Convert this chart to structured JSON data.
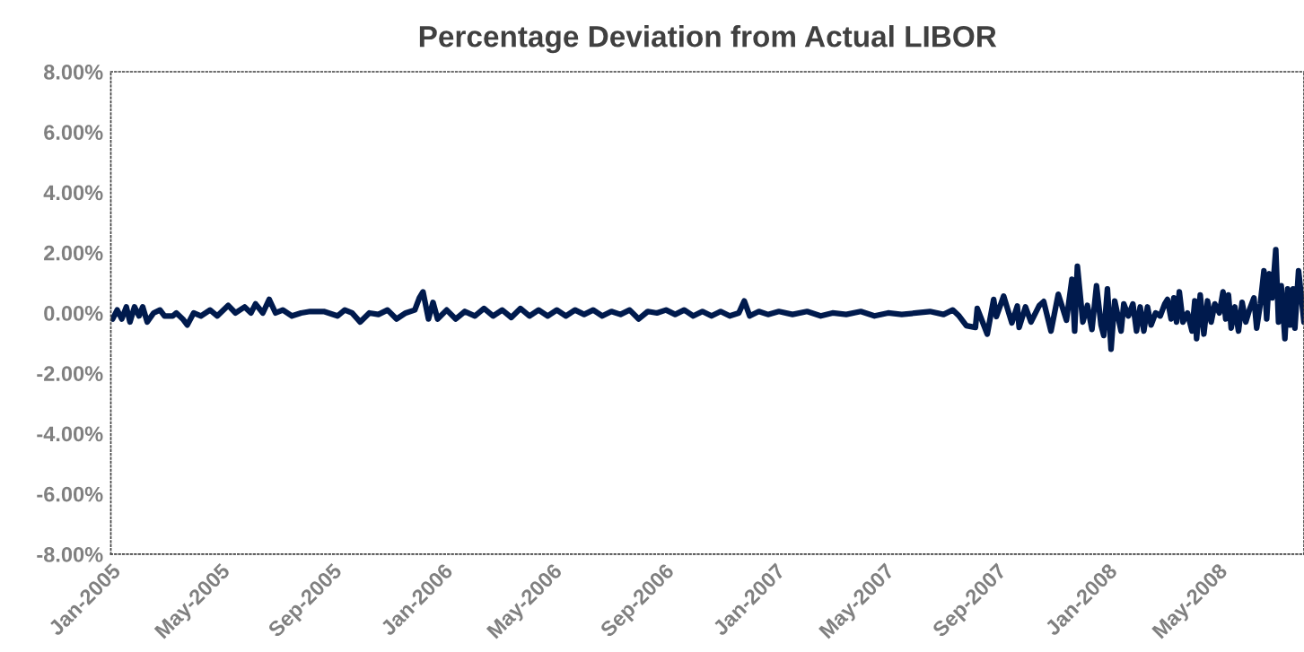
{
  "chart_data": {
    "type": "line",
    "title": "Percentage Deviation from Actual LIBOR",
    "x": [
      "2005-01-03",
      "2005-01-08",
      "2005-01-13",
      "2005-01-18",
      "2005-01-22",
      "2005-01-27",
      "2005-02-01",
      "2005-02-05",
      "2005-02-10",
      "2005-02-17",
      "2005-02-24",
      "2005-03-01",
      "2005-03-10",
      "2005-03-14",
      "2005-03-21",
      "2005-03-26",
      "2005-04-02",
      "2005-04-10",
      "2005-04-20",
      "2005-04-28",
      "2005-05-10",
      "2005-05-18",
      "2005-05-28",
      "2005-06-04",
      "2005-06-09",
      "2005-06-17",
      "2005-06-24",
      "2005-07-01",
      "2005-07-09",
      "2005-07-19",
      "2005-07-29",
      "2005-08-08",
      "2005-08-23",
      "2005-09-07",
      "2005-09-15",
      "2005-09-23",
      "2005-10-02",
      "2005-10-12",
      "2005-10-22",
      "2005-11-01",
      "2005-11-11",
      "2005-11-21",
      "2005-12-01",
      "2005-12-06",
      "2005-12-10",
      "2005-12-16",
      "2005-12-21",
      "2005-12-26",
      "2006-01-05",
      "2006-01-15",
      "2006-01-25",
      "2006-02-05",
      "2006-02-15",
      "2006-02-25",
      "2006-03-07",
      "2006-03-17",
      "2006-03-27",
      "2006-04-06",
      "2006-04-16",
      "2006-04-26",
      "2006-05-06",
      "2006-05-16",
      "2006-05-26",
      "2006-06-05",
      "2006-06-15",
      "2006-06-25",
      "2006-07-05",
      "2006-07-15",
      "2006-07-25",
      "2006-08-04",
      "2006-08-14",
      "2006-08-24",
      "2006-09-03",
      "2006-09-13",
      "2006-09-23",
      "2006-10-03",
      "2006-10-13",
      "2006-10-23",
      "2006-11-02",
      "2006-11-12",
      "2006-11-22",
      "2006-11-28",
      "2006-12-04",
      "2006-12-14",
      "2006-12-24",
      "2007-01-05",
      "2007-01-20",
      "2007-02-05",
      "2007-02-20",
      "2007-03-05",
      "2007-03-20",
      "2007-04-05",
      "2007-04-20",
      "2007-05-05",
      "2007-05-20",
      "2007-06-05",
      "2007-06-20",
      "2007-07-05",
      "2007-07-15",
      "2007-07-22",
      "2007-07-30",
      "2007-08-09",
      "2007-08-11",
      "2007-08-22",
      "2007-08-29",
      "2007-09-01",
      "2007-09-09",
      "2007-09-18",
      "2007-09-24",
      "2007-09-26",
      "2007-10-03",
      "2007-10-09",
      "2007-10-18",
      "2007-10-23",
      "2007-10-31",
      "2007-11-08",
      "2007-11-17",
      "2007-11-23",
      "2007-11-26",
      "2007-11-29",
      "2007-12-05",
      "2007-12-10",
      "2007-12-15",
      "2007-12-20",
      "2007-12-25",
      "2007-12-28",
      "2008-01-01",
      "2008-01-05",
      "2008-01-09",
      "2008-01-16",
      "2008-01-19",
      "2008-01-24",
      "2008-01-29",
      "2008-02-02",
      "2008-02-06",
      "2008-02-10",
      "2008-02-14",
      "2008-02-18",
      "2008-02-23",
      "2008-02-28",
      "2008-03-04",
      "2008-03-07",
      "2008-03-11",
      "2008-03-14",
      "2008-03-17",
      "2008-03-20",
      "2008-03-24",
      "2008-03-29",
      "2008-04-03",
      "2008-04-06",
      "2008-04-08",
      "2008-04-12",
      "2008-04-16",
      "2008-04-20",
      "2008-04-24",
      "2008-04-28",
      "2008-05-03",
      "2008-05-07",
      "2008-05-10",
      "2008-05-13",
      "2008-05-16",
      "2008-05-20",
      "2008-05-24",
      "2008-05-28",
      "2008-06-01",
      "2008-06-05",
      "2008-06-10",
      "2008-06-13",
      "2008-06-17",
      "2008-06-21",
      "2008-06-24",
      "2008-06-27",
      "2008-06-30",
      "2008-07-04",
      "2008-07-07",
      "2008-07-10",
      "2008-07-14",
      "2008-07-17",
      "2008-07-20",
      "2008-07-23",
      "2008-07-25",
      "2008-07-29",
      "2008-08-04"
    ],
    "series": [
      {
        "color": "#001a4d",
        "values": [
          -0.2,
          0.1,
          -0.2,
          0.2,
          -0.3,
          0.2,
          -0.1,
          0.2,
          -0.3,
          0.0,
          0.1,
          -0.1,
          -0.1,
          0.0,
          -0.2,
          -0.4,
          0.0,
          -0.1,
          0.1,
          -0.1,
          0.25,
          0.0,
          0.2,
          0.0,
          0.3,
          0.0,
          0.45,
          0.0,
          0.1,
          -0.1,
          0.0,
          0.05,
          0.05,
          -0.1,
          0.1,
          0.0,
          -0.3,
          0.0,
          -0.05,
          0.1,
          -0.2,
          0.0,
          0.1,
          0.5,
          0.7,
          -0.2,
          0.35,
          -0.2,
          0.1,
          -0.2,
          0.05,
          -0.1,
          0.15,
          -0.1,
          0.1,
          -0.15,
          0.15,
          -0.1,
          0.1,
          -0.1,
          0.1,
          -0.1,
          0.1,
          -0.05,
          0.1,
          -0.1,
          0.05,
          -0.05,
          0.1,
          -0.2,
          0.05,
          0.0,
          0.1,
          -0.05,
          0.1,
          -0.1,
          0.05,
          -0.1,
          0.05,
          -0.1,
          0.0,
          0.4,
          -0.1,
          0.05,
          -0.05,
          0.05,
          -0.05,
          0.05,
          -0.1,
          0.0,
          -0.05,
          0.05,
          -0.1,
          0.0,
          -0.05,
          0.0,
          0.05,
          -0.05,
          0.1,
          -0.1,
          -0.42,
          -0.48,
          0.15,
          -0.7,
          0.45,
          -0.12,
          0.56,
          -0.33,
          0.23,
          -0.48,
          0.2,
          -0.3,
          0.24,
          0.38,
          -0.6,
          0.62,
          -0.24,
          1.12,
          -0.6,
          1.55,
          -0.3,
          0.25,
          -0.55,
          0.9,
          -0.4,
          -0.75,
          0.8,
          -1.2,
          0.4,
          -0.6,
          0.3,
          -0.1,
          0.3,
          -0.6,
          0.2,
          -0.6,
          0.2,
          -0.4,
          0.0,
          -0.1,
          0.3,
          0.45,
          -0.2,
          0.5,
          -0.3,
          0.7,
          -0.3,
          0.0,
          -0.6,
          0.4,
          -0.85,
          0.6,
          -0.7,
          0.4,
          -0.3,
          0.3,
          0.0,
          0.7,
          -0.2,
          0.6,
          -0.5,
          0.2,
          -0.6,
          0.35,
          -0.3,
          0.1,
          0.5,
          -0.5,
          0.3,
          1.4,
          -0.2,
          1.3,
          0.5,
          2.1,
          -0.3,
          0.9,
          -0.85,
          0.8,
          -0.4,
          0.8,
          -0.5,
          1.4,
          -0.3
        ]
      }
    ],
    "xlim": [
      "2005-01-01",
      "2008-08-04"
    ],
    "xticks": [
      {
        "value": "2005-01-01",
        "label": "Jan-2005"
      },
      {
        "value": "2005-05-01",
        "label": "May-2005"
      },
      {
        "value": "2005-09-01",
        "label": "Sep-2005"
      },
      {
        "value": "2006-01-01",
        "label": "Jan-2006"
      },
      {
        "value": "2006-05-01",
        "label": "May-2006"
      },
      {
        "value": "2006-09-01",
        "label": "Sep-2006"
      },
      {
        "value": "2007-01-01",
        "label": "Jan-2007"
      },
      {
        "value": "2007-05-01",
        "label": "May-2007"
      },
      {
        "value": "2007-09-01",
        "label": "Sep-2007"
      },
      {
        "value": "2008-01-01",
        "label": "Jan-2008"
      },
      {
        "value": "2008-05-01",
        "label": "May-2008"
      }
    ],
    "ylim": [
      -8,
      8
    ],
    "yticks": [
      {
        "value": -8,
        "label": "-8.00%"
      },
      {
        "value": -6,
        "label": "-6.00%"
      },
      {
        "value": -4,
        "label": "-4.00%"
      },
      {
        "value": -2,
        "label": "-2.00%"
      },
      {
        "value": 0,
        "label": "0.00%"
      },
      {
        "value": 2,
        "label": "2.00%"
      },
      {
        "value": 4,
        "label": "4.00%"
      },
      {
        "value": 6,
        "label": "6.00%"
      },
      {
        "value": 8,
        "label": "8.00%"
      }
    ],
    "grid": false,
    "marker": "none",
    "line_style": "solid"
  }
}
